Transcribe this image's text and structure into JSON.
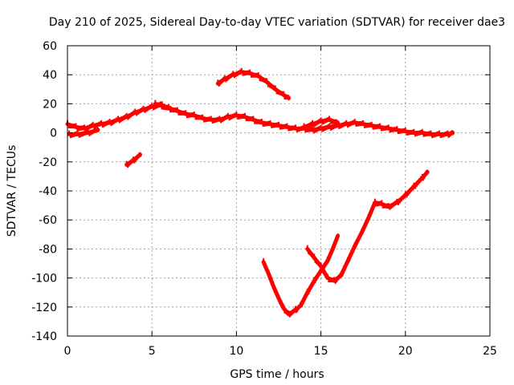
{
  "chart_data": {
    "type": "scatter",
    "title": "Day 210 of 2025, Sidereal Day-to-day VTEC variation (SDTVAR) for receiver dae3",
    "xlabel": "GPS time / hours",
    "ylabel": "SDTVAR / TECUs",
    "xlim": [
      0,
      25
    ],
    "ylim": [
      -140,
      60
    ],
    "xticks": [
      0,
      5,
      10,
      15,
      20,
      25
    ],
    "yticks": [
      -140,
      -120,
      -100,
      -80,
      -60,
      -40,
      -20,
      0,
      20,
      40,
      60
    ],
    "grid": true,
    "legend": "none",
    "series_color": "#ff0000",
    "series": [
      {
        "name": "main-trace",
        "points": [
          [
            0,
            6
          ],
          [
            0.5,
            4
          ],
          [
            1,
            3
          ],
          [
            1.5,
            5
          ],
          [
            2,
            6
          ],
          [
            2.5,
            7
          ],
          [
            3,
            9
          ],
          [
            3.5,
            11
          ],
          [
            4,
            14
          ],
          [
            4.5,
            16
          ],
          [
            5,
            18
          ],
          [
            5.5,
            19
          ],
          [
            6,
            17
          ],
          [
            6.5,
            15
          ],
          [
            7,
            13
          ],
          [
            7.5,
            12
          ],
          [
            8,
            10
          ],
          [
            8.5,
            9
          ],
          [
            9,
            9
          ],
          [
            9.5,
            11
          ],
          [
            10,
            12
          ],
          [
            10.5,
            11
          ],
          [
            11,
            9
          ],
          [
            11.5,
            7
          ],
          [
            12,
            6
          ],
          [
            12.5,
            5
          ],
          [
            13,
            4
          ],
          [
            13.5,
            3
          ],
          [
            14,
            3
          ],
          [
            14.5,
            2
          ],
          [
            15,
            3
          ],
          [
            15.5,
            4
          ],
          [
            16,
            5
          ],
          [
            16.5,
            6
          ],
          [
            17,
            7
          ],
          [
            17.5,
            6
          ],
          [
            18,
            5
          ],
          [
            18.5,
            4
          ],
          [
            19,
            3
          ],
          [
            19.5,
            2
          ],
          [
            20,
            1
          ],
          [
            20.5,
            0
          ],
          [
            21,
            0
          ],
          [
            21.5,
            -1
          ],
          [
            22,
            -1
          ],
          [
            22.5,
            -1
          ],
          [
            22.8,
            0
          ]
        ]
      },
      {
        "name": "early-lower-trace",
        "points": [
          [
            0.1,
            -1
          ],
          [
            0.6,
            -1
          ],
          [
            1.2,
            0
          ],
          [
            1.8,
            2
          ]
        ]
      },
      {
        "name": "spike-trace",
        "points": [
          [
            5.2,
            20
          ],
          [
            5.6,
            19
          ],
          [
            6.2,
            16
          ]
        ]
      },
      {
        "name": "mid-dip-trace",
        "points": [
          [
            14,
            4
          ],
          [
            14.5,
            6
          ],
          [
            15,
            8
          ],
          [
            15.5,
            9
          ],
          [
            16,
            7
          ]
        ]
      },
      {
        "name": "arc-trace",
        "points": [
          [
            8.9,
            34
          ],
          [
            9.3,
            37
          ],
          [
            9.8,
            40
          ],
          [
            10.3,
            42
          ],
          [
            10.8,
            41
          ],
          [
            11.3,
            39
          ],
          [
            11.8,
            35
          ],
          [
            12.3,
            30
          ],
          [
            12.8,
            26
          ],
          [
            13.1,
            24
          ]
        ]
      },
      {
        "name": "small-negative-trace",
        "points": [
          [
            3.5,
            -22
          ],
          [
            3.9,
            -19
          ],
          [
            4.3,
            -15
          ]
        ]
      },
      {
        "name": "deep-dip-trace",
        "points": [
          [
            11.6,
            -89
          ],
          [
            11.9,
            -97
          ],
          [
            12.2,
            -106
          ],
          [
            12.5,
            -114
          ],
          [
            12.8,
            -121
          ],
          [
            13.1,
            -125
          ],
          [
            13.5,
            -122
          ],
          [
            13.8,
            -119
          ],
          [
            14.2,
            -110
          ],
          [
            14.6,
            -102
          ],
          [
            15,
            -95
          ],
          [
            15.4,
            -88
          ],
          [
            15.7,
            -80
          ],
          [
            16,
            -71
          ]
        ]
      },
      {
        "name": "recovery-trace",
        "points": [
          [
            14.2,
            -80
          ],
          [
            14.6,
            -86
          ],
          [
            15,
            -92
          ],
          [
            15.4,
            -100
          ],
          [
            15.8,
            -102
          ],
          [
            16.2,
            -98
          ],
          [
            16.6,
            -88
          ],
          [
            17,
            -78
          ],
          [
            17.4,
            -69
          ],
          [
            17.8,
            -59
          ],
          [
            18.2,
            -48
          ],
          [
            18.6,
            -49
          ],
          [
            19,
            -51
          ],
          [
            19.5,
            -48
          ],
          [
            20,
            -43
          ],
          [
            20.5,
            -37
          ],
          [
            21,
            -31
          ],
          [
            21.3,
            -27
          ]
        ]
      }
    ]
  }
}
